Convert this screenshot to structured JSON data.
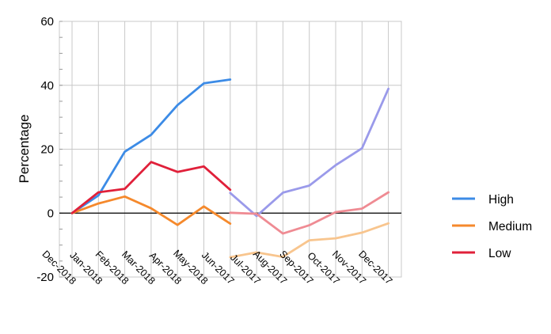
{
  "chart_data": {
    "type": "line",
    "title": "",
    "xlabel": "",
    "ylabel": "Percentage",
    "ylim": [
      -20,
      60
    ],
    "yticks": [
      -20,
      0,
      20,
      40,
      60
    ],
    "grid": true,
    "legend_position": "right",
    "categories": [
      "Dec-2018",
      "Jan-2018",
      "Feb-2018",
      "Mar-2018",
      "Apr-2018",
      "May-2018",
      "Jun-2017",
      "Jul-2017",
      "Aug-2017",
      "Sep-2017",
      "Oct-2017",
      "Nov-2017",
      "Dec-2017"
    ],
    "series": [
      {
        "name": "High",
        "color": "#3c8be6",
        "values": [
          0,
          5.5,
          19.2,
          24.5,
          33.8,
          40.6,
          41.8,
          null,
          null,
          null,
          null,
          null,
          null
        ]
      },
      {
        "name": "Medium",
        "color": "#f5892c",
        "values": [
          0,
          3.0,
          5.2,
          1.5,
          -3.7,
          2.1,
          -3.3,
          null,
          null,
          null,
          null,
          null,
          null
        ]
      },
      {
        "name": "Low",
        "color": "#e0203a",
        "values": [
          0,
          6.5,
          7.6,
          16.0,
          12.9,
          14.6,
          7.3,
          null,
          null,
          null,
          null,
          null,
          null
        ]
      },
      {
        "name": "",
        "color": "#9a9aea",
        "values": [
          null,
          null,
          null,
          null,
          null,
          null,
          6.3,
          -0.9,
          6.4,
          8.6,
          15.0,
          20.3,
          38.9
        ]
      },
      {
        "name": "",
        "color": "#f8c58e",
        "values": [
          null,
          null,
          null,
          null,
          null,
          null,
          -13.8,
          -12.3,
          -13.7,
          -8.5,
          -7.9,
          -6.1,
          -3.2
        ]
      },
      {
        "name": "",
        "color": "#ef8b93",
        "values": [
          null,
          null,
          null,
          null,
          null,
          null,
          0.1,
          -0.2,
          -6.4,
          -3.8,
          0.3,
          1.4,
          6.5
        ]
      }
    ]
  }
}
